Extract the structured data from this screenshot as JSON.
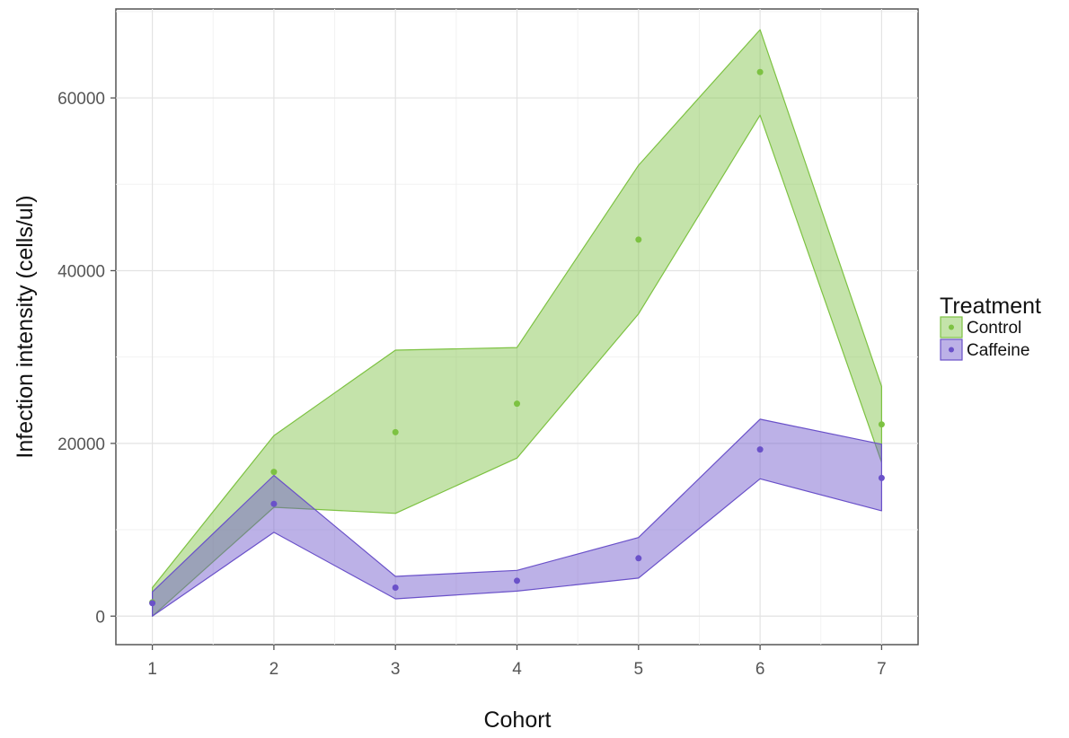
{
  "chart_data": {
    "type": "area",
    "xlabel": "Cohort",
    "ylabel": "Infection intensity (cells/ul)",
    "x": [
      1,
      2,
      3,
      4,
      5,
      6,
      7
    ],
    "x_ticks": [
      "1",
      "2",
      "3",
      "4",
      "5",
      "6",
      "7"
    ],
    "y_ticks": [
      "0",
      "20000",
      "40000",
      "60000"
    ],
    "xlim": [
      0.7,
      7.3
    ],
    "ylim": [
      -3300,
      70300
    ],
    "grid": true,
    "legend": {
      "title": "Treatment",
      "placement": "right",
      "entries": [
        "Control",
        "Caffeine"
      ]
    },
    "series": [
      {
        "name": "Control",
        "color": "#7dc242",
        "points": [
          1600,
          16700,
          21300,
          24600,
          43600,
          63000,
          22200
        ],
        "upper": [
          3300,
          20900,
          30800,
          31100,
          52200,
          67900,
          26600
        ],
        "lower": [
          0,
          12600,
          11900,
          18300,
          35000,
          58000,
          17800
        ]
      },
      {
        "name": "Caffeine",
        "color": "#6a51c9",
        "points": [
          1500,
          13000,
          3300,
          4100,
          6700,
          19300,
          16000
        ],
        "upper": [
          2800,
          16300,
          4600,
          5300,
          9100,
          22800,
          19900
        ],
        "lower": [
          0,
          9700,
          2000,
          2900,
          4400,
          15900,
          12200
        ]
      }
    ]
  }
}
